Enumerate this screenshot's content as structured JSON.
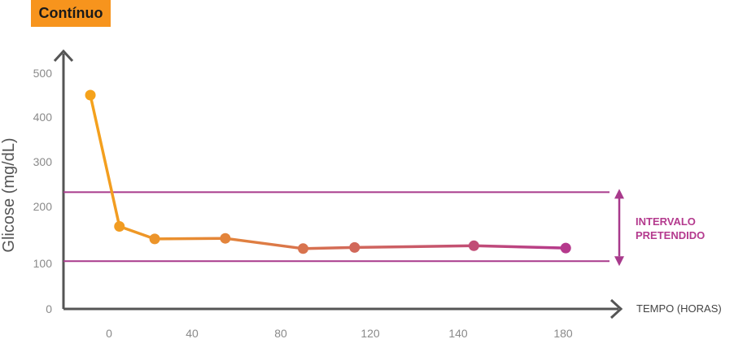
{
  "badge": {
    "label": "Contínuo"
  },
  "chart_data": {
    "type": "line",
    "title": "Contínuo",
    "ylabel": "Glicose (mg/dL)",
    "xlabel": "TEMPO (HORAS)",
    "y_ticks": [
      "0",
      "100",
      "200",
      "300",
      "400",
      "500"
    ],
    "x_ticks": [
      "0",
      "40",
      "80",
      "120",
      "140",
      "180"
    ],
    "ylim": [
      0,
      500
    ],
    "grid": false,
    "points": [
      {
        "x": -9,
        "y": 450
      },
      {
        "x": 5,
        "y": 165
      },
      {
        "x": 22,
        "y": 143
      },
      {
        "x": 55,
        "y": 144
      },
      {
        "x": 90,
        "y": 126
      },
      {
        "x": 113,
        "y": 128
      },
      {
        "x": 146,
        "y": 131
      },
      {
        "x": 181,
        "y": 127
      }
    ],
    "target_range": {
      "low": 104,
      "high": 232,
      "label_line1": "INTERVALO",
      "label_line2": "PRETENDIDO"
    },
    "colors": {
      "start": "#f5a21b",
      "end": "#b5398c",
      "target_line": "#a83a8c",
      "axis": "#555555"
    }
  }
}
